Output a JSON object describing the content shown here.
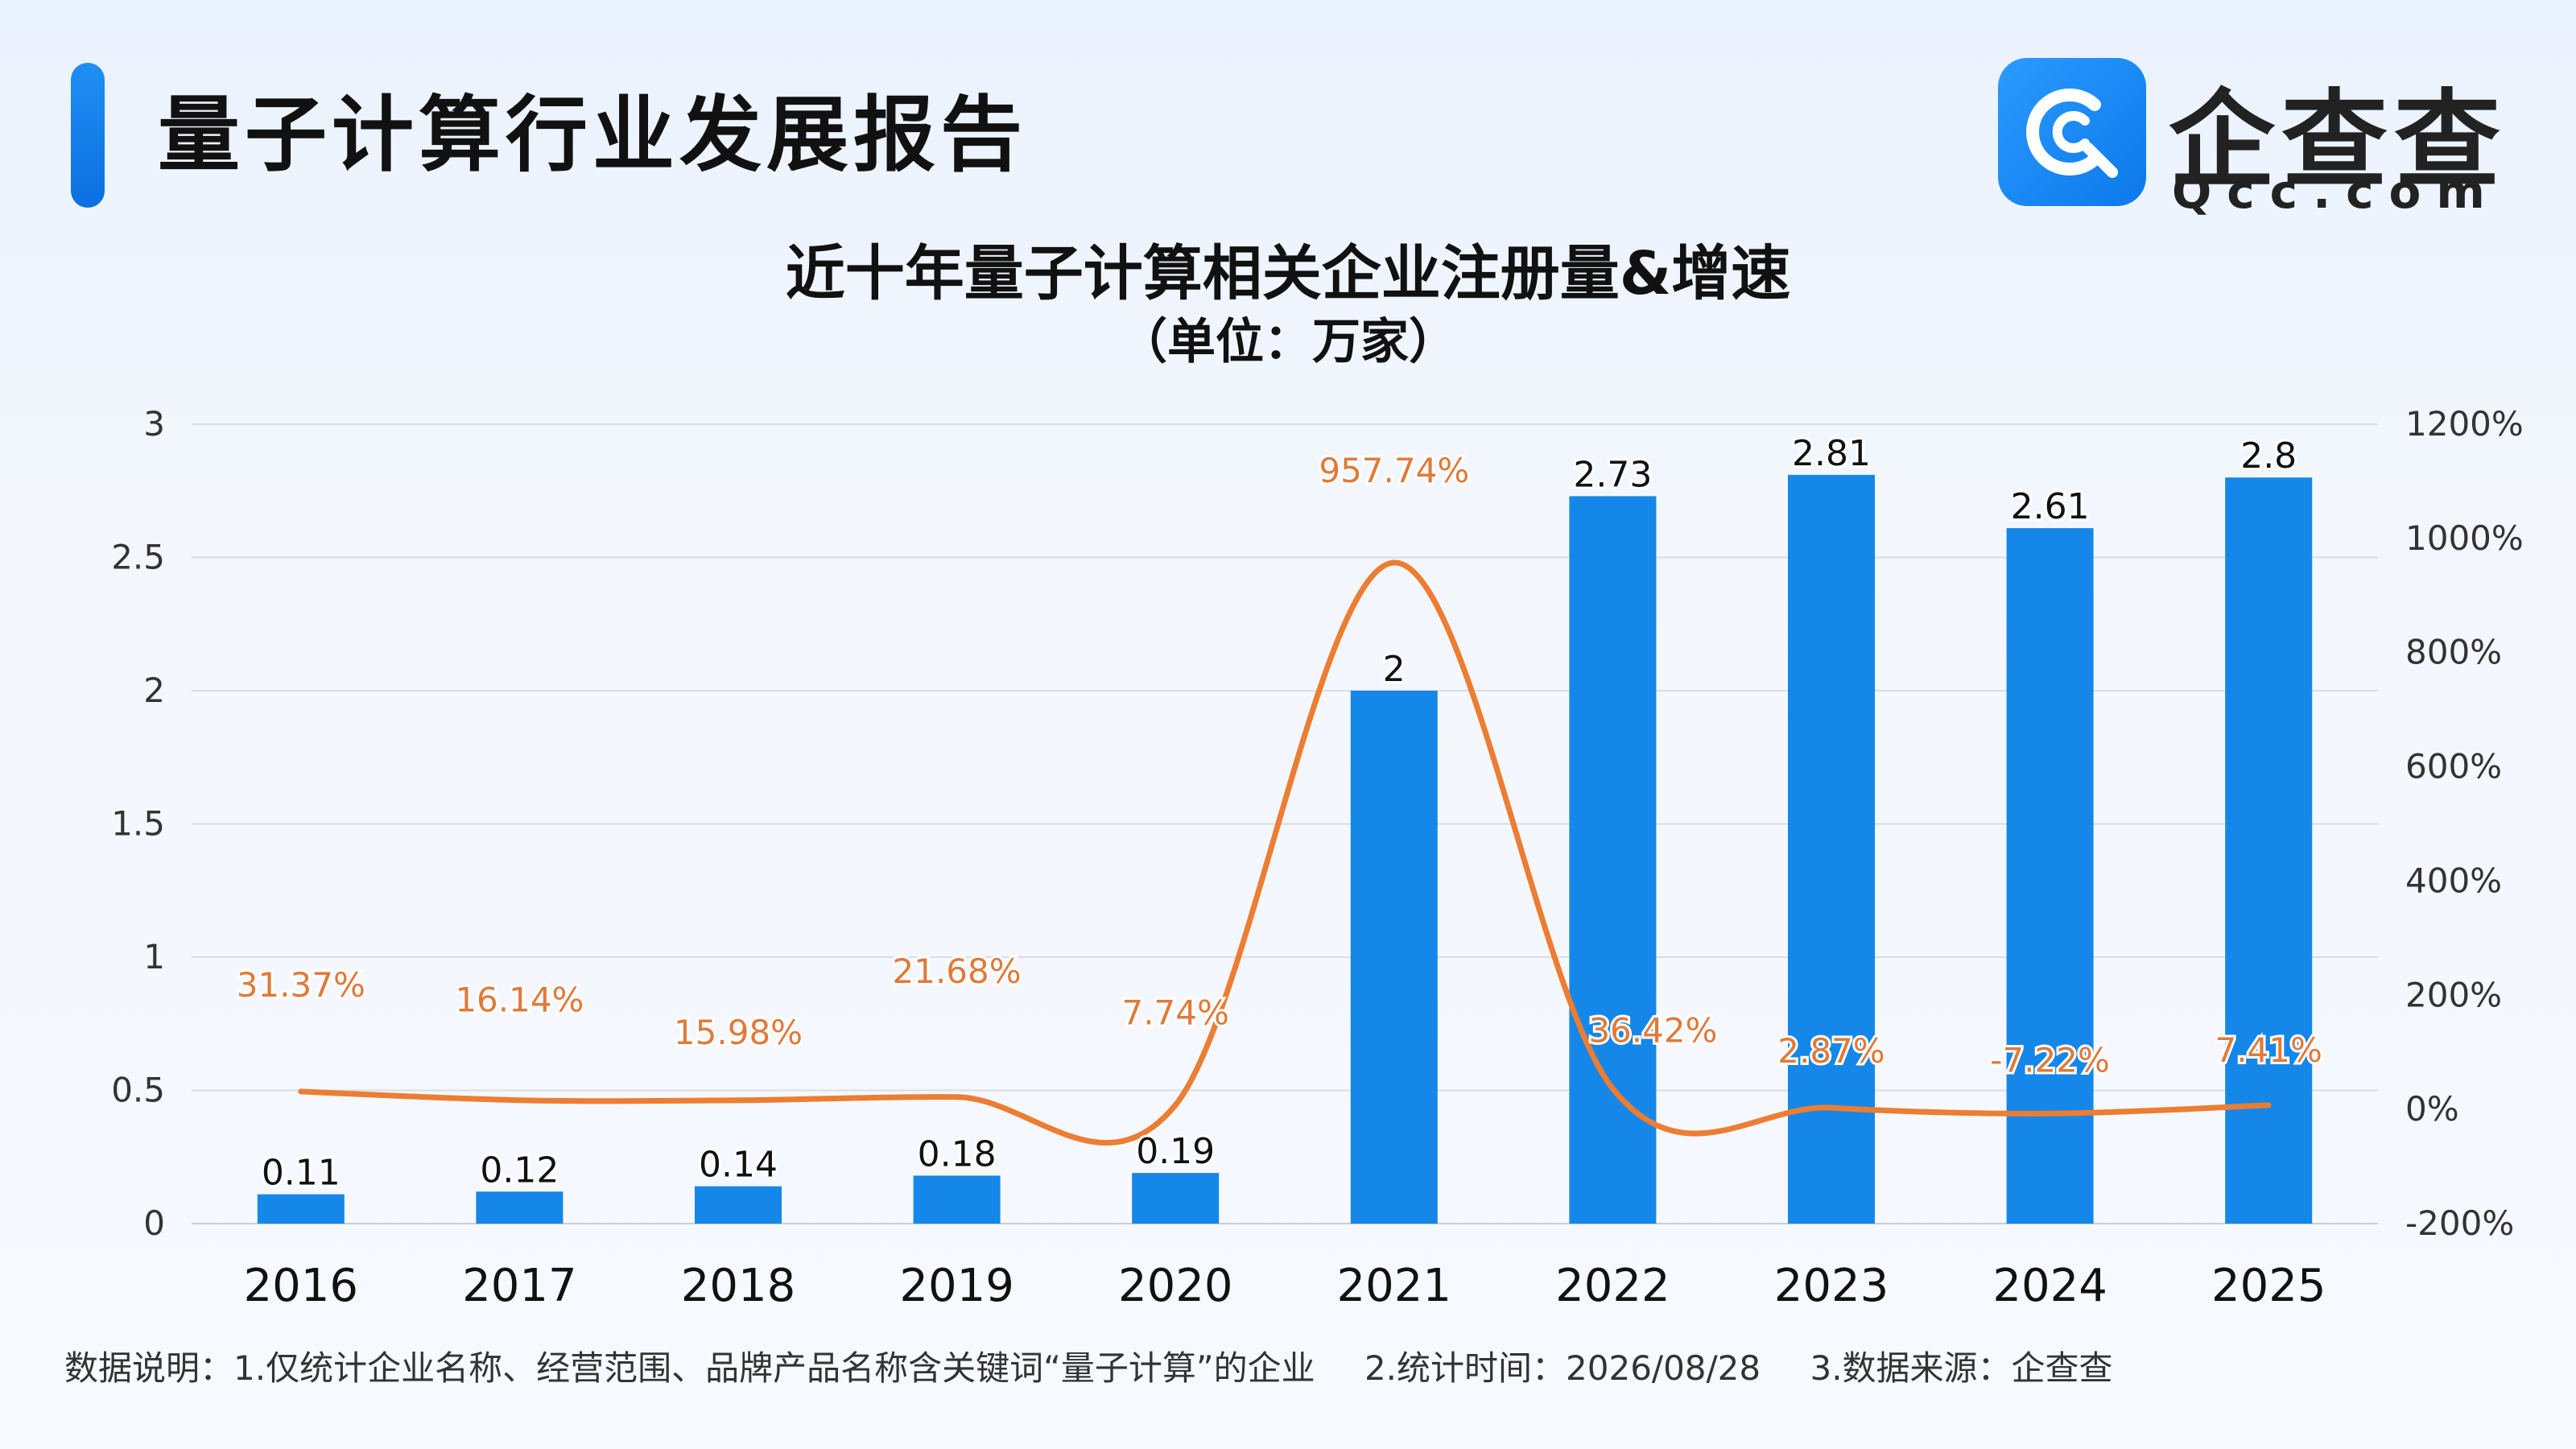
{
  "header": {
    "title": "量子计算行业发展报告"
  },
  "logo": {
    "name": "企查查",
    "domain": "Qcc.com"
  },
  "colors": {
    "accent": "#1a87ee",
    "bar": "#1587e8",
    "line": "#ec7d32",
    "line_label": "#e07a3a"
  },
  "chart_data": {
    "type": "bar",
    "title": "近十年量子计算相关企业注册量&增速",
    "subtitle": "（单位：万家）",
    "categories": [
      "2016",
      "2017",
      "2018",
      "2019",
      "2020",
      "2021",
      "2022",
      "2023",
      "2024",
      "2025"
    ],
    "series": [
      {
        "type": "bar",
        "axis": "left",
        "values": [
          0.11,
          0.12,
          0.14,
          0.18,
          0.19,
          2,
          2.73,
          2.81,
          2.61,
          2.8
        ],
        "labels": [
          "0.11",
          "0.12",
          "0.14",
          "0.18",
          "0.19",
          "2",
          "2.73",
          "2.81",
          "2.61",
          "2.8"
        ]
      },
      {
        "type": "line",
        "axis": "right",
        "smooth": true,
        "values": [
          31.37,
          16.14,
          15.98,
          21.68,
          7.74,
          957.74,
          36.42,
          2.87,
          -7.22,
          7.41
        ],
        "labels": [
          "31.37%",
          "16.14%",
          "15.98%",
          "21.68%",
          "7.74%",
          "957.74%",
          "36.42%",
          "2.87%",
          "-7.22%",
          "7.41%"
        ]
      }
    ],
    "y_left": {
      "min": 0,
      "max": 3,
      "ticks": [
        "0",
        "0.5",
        "1",
        "1.5",
        "2",
        "2.5",
        "3"
      ]
    },
    "y_right": {
      "min": -200,
      "max": 1200,
      "ticks": [
        "-200%",
        "0%",
        "200%",
        "400%",
        "600%",
        "800%",
        "1000%",
        "1200%"
      ]
    },
    "grid": true,
    "legend": "none"
  },
  "footer": {
    "note1": "数据说明：1.仅统计企业名称、经营范围、品牌产品名称含关键词“量子计算”的企业",
    "note2": "2.统计时间：2026/08/28",
    "note3": "3.数据来源：企查查"
  }
}
